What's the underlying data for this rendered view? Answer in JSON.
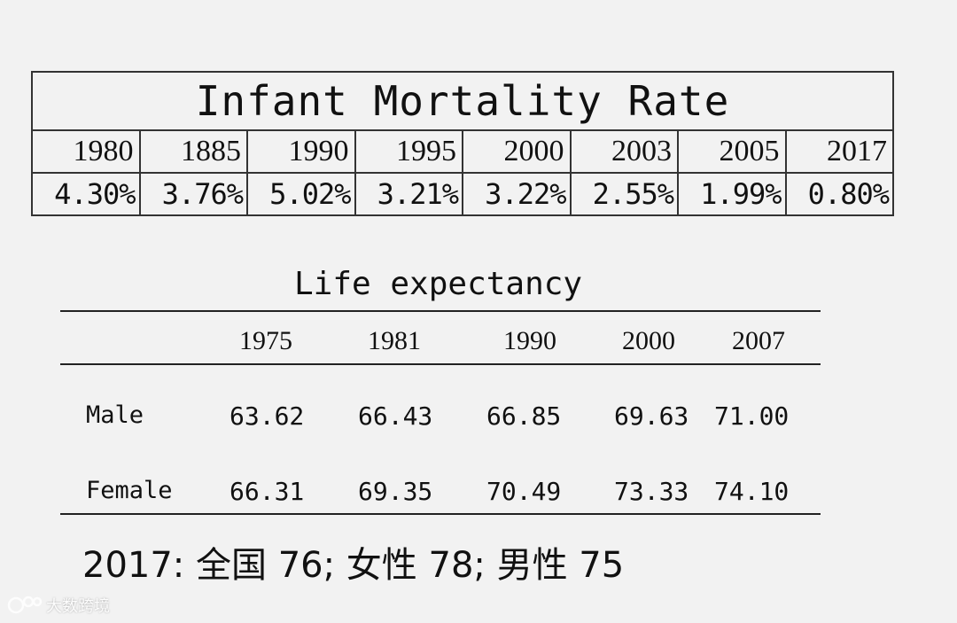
{
  "infant_mortality": {
    "title": "Infant Mortality Rate",
    "years": [
      "1980",
      "1885",
      "1990",
      "1995",
      "2000",
      "2003",
      "2005",
      "2017"
    ],
    "rates": [
      "4.30%",
      "3.76%",
      "5.02%",
      "3.21%",
      "3.22%",
      "2.55%",
      "1.99%",
      "0.80%"
    ]
  },
  "life_expectancy": {
    "title": "Life expectancy",
    "years": [
      "1975",
      "1981",
      "1990",
      "2000",
      "2007"
    ],
    "rows": [
      {
        "label": "Male",
        "values": [
          "63.62",
          "66.43",
          "66.85",
          "69.63",
          "71.00"
        ]
      },
      {
        "label": "Female",
        "values": [
          "66.31",
          "69.35",
          "70.49",
          "73.33",
          "74.10"
        ]
      }
    ]
  },
  "note": "2017: 全国 76; 女性 78; 男性 75",
  "watermark": {
    "text": "大数跨境"
  }
}
